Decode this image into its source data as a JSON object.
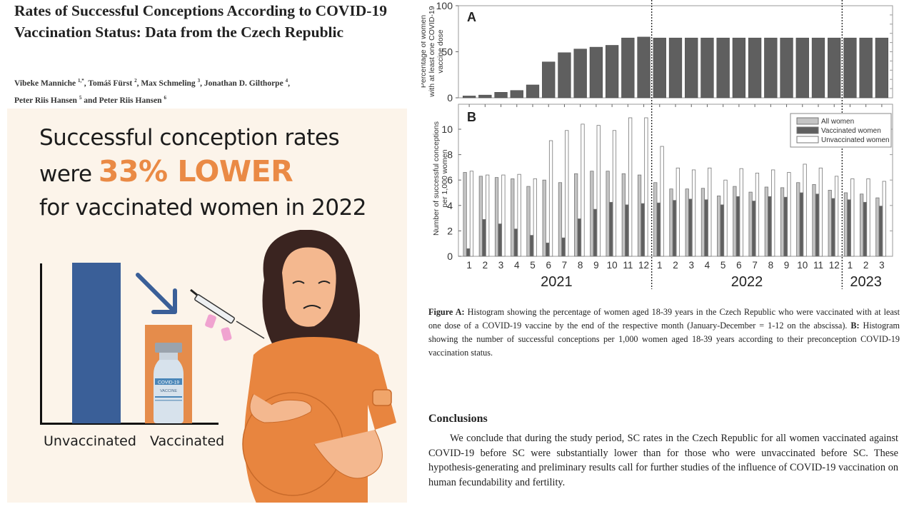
{
  "paper": {
    "title": "Rates of Successful Conceptions According to COVID-19 Vaccination Status: Data from the Czech Republic",
    "authors": [
      {
        "name": "Vibeke Manniche",
        "sup": "1,*"
      },
      {
        "name": "Tomáš Fürst",
        "sup": "2"
      },
      {
        "name": "Max Schmeling",
        "sup": "3"
      },
      {
        "name": "Jonathan D. Gilthorpe",
        "sup": "4"
      },
      {
        "name": "Peter Riis Hansen",
        "sup": "5"
      },
      {
        "name": "Peter Riis Hansen",
        "sup": "6"
      }
    ],
    "authors_conjunction": "and"
  },
  "infographic": {
    "line1": "Successful conception rates",
    "line2_prefix": "were",
    "highlight": "33% LOWER",
    "line3": "for vaccinated women in 2022",
    "bar_labels": [
      "Unvaccinated",
      "Vaccinated"
    ],
    "vial_label_top": "COVID-19",
    "vial_label_bottom": "VACCINE",
    "colors": {
      "background": "#fcf4ea",
      "highlight": "#ea8a45",
      "unvaccinated_bar": "#3a5f98",
      "vaccinated_bar": "#e58c4b",
      "dress": "#e8853f"
    }
  },
  "chart_data": [
    {
      "type": "bar",
      "panel": "A",
      "ylabel": "Percentage of women with at least one COVID-19 vaccine dose",
      "ylim": [
        0,
        100
      ],
      "yticks": [
        0,
        50,
        100
      ],
      "categories": [
        "1",
        "2",
        "3",
        "4",
        "5",
        "6",
        "7",
        "8",
        "9",
        "10",
        "11",
        "12",
        "1",
        "2",
        "3",
        "4",
        "5",
        "6",
        "7",
        "8",
        "9",
        "10",
        "11",
        "12",
        "1",
        "2",
        "3"
      ],
      "years": [
        {
          "label": "2021",
          "months": 12
        },
        {
          "label": "2022",
          "months": 12
        },
        {
          "label": "2023",
          "months": 3
        }
      ],
      "values": [
        2,
        3,
        6,
        8,
        14,
        39,
        49,
        53,
        55,
        57,
        65,
        66,
        65,
        65,
        65,
        65,
        65,
        65,
        65,
        65,
        65,
        65,
        65,
        65,
        65,
        65,
        65
      ],
      "color": "#5f5f5f",
      "grid": false
    },
    {
      "type": "bar",
      "panel": "B",
      "ylabel": "Number of successful conceptions per 1,000 women",
      "ylim": [
        0,
        12
      ],
      "yticks": [
        0,
        2,
        4,
        6,
        8,
        10
      ],
      "categories": [
        "1",
        "2",
        "3",
        "4",
        "5",
        "6",
        "7",
        "8",
        "9",
        "10",
        "11",
        "12",
        "1",
        "2",
        "3",
        "4",
        "5",
        "6",
        "7",
        "8",
        "9",
        "10",
        "11",
        "12",
        "1",
        "2",
        "3"
      ],
      "years": [
        {
          "label": "2021",
          "months": 12
        },
        {
          "label": "2022",
          "months": 12
        },
        {
          "label": "2023",
          "months": 3
        }
      ],
      "legend_position": "top-right",
      "series": [
        {
          "name": "All women",
          "color": "#c4c4c4",
          "values": [
            6.6,
            6.3,
            6.2,
            6.1,
            5.5,
            6.0,
            5.8,
            6.5,
            6.7,
            6.7,
            6.5,
            6.4,
            5.8,
            5.3,
            5.3,
            5.35,
            4.75,
            5.5,
            5.05,
            5.45,
            5.4,
            5.8,
            5.65,
            5.2,
            5.0,
            4.9,
            4.6
          ]
        },
        {
          "name": "Vaccinated women",
          "color": "#5f5f5f",
          "values": [
            0.6,
            2.9,
            2.55,
            2.15,
            1.65,
            1.05,
            1.45,
            2.95,
            3.7,
            4.25,
            4.05,
            4.15,
            4.2,
            4.4,
            4.5,
            4.45,
            4.05,
            4.7,
            4.35,
            4.7,
            4.65,
            5.0,
            4.9,
            4.55,
            4.45,
            4.25,
            3.95
          ]
        },
        {
          "name": "Unvaccinated women",
          "color": "#ffffff",
          "values": [
            6.7,
            6.4,
            6.4,
            6.45,
            6.1,
            9.1,
            9.9,
            10.4,
            10.3,
            9.9,
            10.9,
            10.9,
            8.65,
            6.95,
            6.8,
            6.95,
            6.0,
            6.9,
            6.55,
            6.8,
            6.6,
            7.25,
            6.95,
            6.3,
            6.1,
            6.1,
            5.9
          ]
        }
      ],
      "grid": false
    }
  ],
  "caption": {
    "a_label": "Figure A:",
    "a_text": " Histogram showing the percentage of women aged 18-39 years in the Czech Republic who were vaccinated with at least one dose of a COVID-19 vaccine by the end of the respective month (January-December = 1-12 on the abscissa). ",
    "b_label": "B:",
    "b_text": " Histogram showing the number of successful conceptions per 1,000 women aged 18-39 years according to their preconception COVID-19 vaccination status."
  },
  "conclusions": {
    "heading": "Conclusions",
    "text": "We conclude that during the study period, SC rates in the Czech Republic for all women vaccinated against COVID-19 before SC were substantially lower than for those who were unvaccinated before SC. These hypothesis-generating and preliminary results call for further studies of the influence of COVID-19 vaccination on human fecundability and fertility."
  }
}
